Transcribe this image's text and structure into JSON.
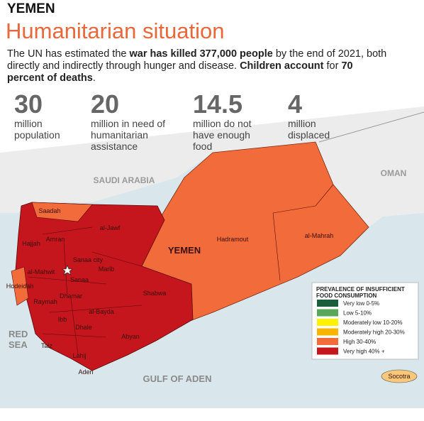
{
  "header": {
    "kicker": "YEMEN",
    "title": "Humanitarian situation",
    "intro": [
      {
        "text": "The UN has estimated the ",
        "bold": false
      },
      {
        "text": "war has killed 377,000 people",
        "bold": true
      },
      {
        "text": " by the end of 2021, both directly and indirectly through hunger and disease. ",
        "bold": false
      },
      {
        "text": "Children account",
        "bold": true
      },
      {
        "text": " for ",
        "bold": false
      },
      {
        "text": "70 percent of deaths",
        "bold": true
      },
      {
        "text": ".",
        "bold": false
      }
    ]
  },
  "stats": [
    {
      "number": "30",
      "label": "million population"
    },
    {
      "number": "20",
      "label": "million in need of humanitarian assistance"
    },
    {
      "number": "14.5",
      "label": "million do not have enough food"
    },
    {
      "number": "4",
      "label": "million displaced"
    }
  ],
  "map": {
    "countries": [
      "SAUDI ARABIA",
      "OMAN",
      "YEMEN"
    ],
    "seas": [
      "GULF OF ADEN",
      "RED SEA"
    ],
    "regions": [
      "Saadah",
      "al-Jawf",
      "Amran",
      "Hajjah",
      "Sanaa city",
      "al-Mahwit",
      "Sanaa",
      "Marib",
      "Hodeidah",
      "Raymah",
      "Dhamar",
      "al-Bayda",
      "Shabwa",
      "Ibb",
      "Dhale",
      "Abyan",
      "Taiz",
      "Lahij",
      "Aden",
      "Hadramout",
      "al-Mahrah",
      "Socotra"
    ]
  },
  "legend": {
    "title": "PREVALENCE OF INSUFFICIENT FOOD CONSUMPTION",
    "items": [
      {
        "label": "Very low 0-5%",
        "color": "#1b5e3b"
      },
      {
        "label": "Low 5-10%",
        "color": "#57a85a"
      },
      {
        "label": "Moderately low 10-20%",
        "color": "#fff200"
      },
      {
        "label": "Moderately high 20-30%",
        "color": "#f7b500"
      },
      {
        "label": "High 30-40%",
        "color": "#f26b3a"
      },
      {
        "label": "Very high 40% +",
        "color": "#c4161c"
      }
    ]
  }
}
